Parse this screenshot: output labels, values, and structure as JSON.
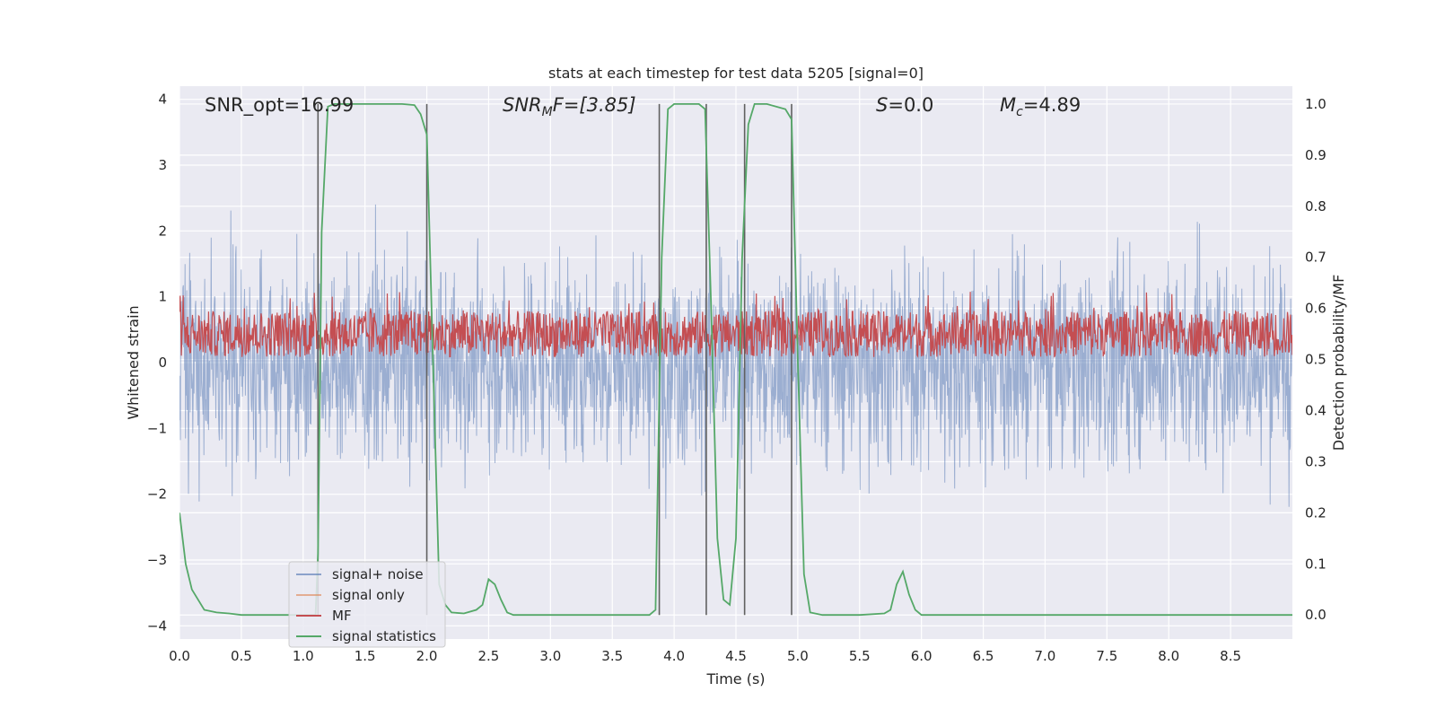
{
  "chart_data": {
    "type": "line",
    "title": "stats at each timestep for test data 5205 [signal=0]",
    "xlabel": "Time (s)",
    "ylabel": "Whitened strain",
    "y2label": "Detection probability/MF",
    "xlim": [
      0.0,
      9.0
    ],
    "ylim": [
      -4.2,
      4.2
    ],
    "y2lim": [
      -0.047,
      1.035
    ],
    "grid": true,
    "legend_position": "lower-left",
    "xticks": [
      "0.0",
      "0.5",
      "1.0",
      "1.5",
      "2.0",
      "2.5",
      "3.0",
      "3.5",
      "4.0",
      "4.5",
      "5.0",
      "5.5",
      "6.0",
      "6.5",
      "7.0",
      "7.5",
      "8.0",
      "8.5"
    ],
    "yticks": [
      "−4",
      "−3",
      "−2",
      "−1",
      "0",
      "1",
      "2",
      "3",
      "4"
    ],
    "y2ticks": [
      "0.0",
      "0.1",
      "0.2",
      "0.3",
      "0.4",
      "0.5",
      "0.6",
      "0.7",
      "0.8",
      "0.9",
      "1.0"
    ],
    "annotations": {
      "snr_opt": "SNR_opt=16.99",
      "snr_mf_main": "SNR",
      "snr_mf_sub": "M",
      "snr_mf_rest": "F=[3.85]",
      "s_main": "S",
      "s_rest": "=0.0",
      "mc_main": "M",
      "mc_sub": "c",
      "mc_rest": "=4.89"
    },
    "series": [
      {
        "name": "signal+ noise",
        "color": "#4c72b0",
        "description_level": "noise amplitude about ±2"
      },
      {
        "name": "signal only",
        "color": "#dd8452"
      },
      {
        "name": "MF",
        "color": "#c44e52"
      },
      {
        "name": "signal statistics",
        "color": "#55a868",
        "x": [
          0.0,
          0.05,
          0.1,
          0.2,
          0.3,
          0.4,
          0.5,
          1.0,
          1.05,
          1.1,
          1.12,
          1.15,
          1.2,
          1.25,
          1.5,
          1.8,
          1.9,
          1.95,
          2.0,
          2.05,
          2.1,
          2.15,
          2.2,
          2.3,
          2.4,
          2.45,
          2.5,
          2.55,
          2.6,
          2.65,
          2.7,
          3.0,
          3.5,
          3.8,
          3.85,
          3.9,
          3.95,
          4.0,
          4.1,
          4.2,
          4.25,
          4.3,
          4.35,
          4.4,
          4.45,
          4.5,
          4.55,
          4.6,
          4.65,
          4.7,
          4.75,
          4.9,
          4.95,
          5.0,
          5.05,
          5.1,
          5.2,
          5.5,
          5.7,
          5.75,
          5.8,
          5.85,
          5.9,
          5.95,
          6.0,
          6.5,
          7.0,
          8.0,
          9.0
        ],
        "y": [
          0.2,
          0.1,
          0.05,
          0.01,
          0.005,
          0.003,
          0.0,
          0.0,
          0.0,
          0.0,
          0.12,
          0.75,
          0.995,
          1.0,
          1.0,
          1.0,
          0.998,
          0.98,
          0.94,
          0.5,
          0.06,
          0.02,
          0.005,
          0.003,
          0.01,
          0.02,
          0.07,
          0.06,
          0.03,
          0.005,
          0.0,
          0.0,
          0.0,
          0.0,
          0.01,
          0.7,
          0.99,
          1.0,
          1.0,
          1.0,
          0.99,
          0.6,
          0.15,
          0.03,
          0.02,
          0.15,
          0.7,
          0.96,
          1.0,
          1.0,
          1.0,
          0.99,
          0.97,
          0.5,
          0.08,
          0.005,
          0.0,
          0.0,
          0.003,
          0.01,
          0.06,
          0.085,
          0.04,
          0.01,
          0.0,
          0.0,
          0.0,
          0.0,
          0.0
        ]
      },
      {
        "name": "detections",
        "color": "#606060",
        "x": [
          1.12,
          2.0,
          3.88,
          4.26,
          4.57,
          4.95
        ]
      }
    ]
  }
}
